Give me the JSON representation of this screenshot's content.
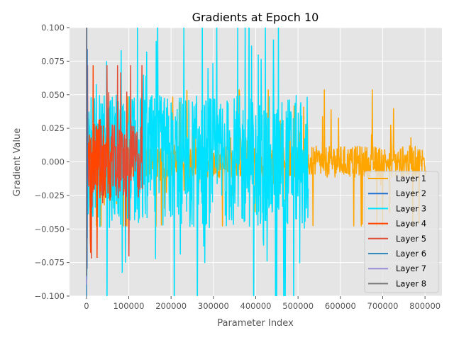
{
  "chart_data": {
    "type": "line",
    "title": "Gradients at Epoch 10",
    "xlabel": "Parameter Index",
    "ylabel": "Gradient Value",
    "xlim": [
      -40000,
      840000
    ],
    "ylim": [
      -0.1,
      0.1
    ],
    "x_ticks": [
      0,
      100000,
      200000,
      300000,
      400000,
      500000,
      600000,
      700000,
      800000
    ],
    "x_tick_labels": [
      "0",
      "100000",
      "200000",
      "300000",
      "400000",
      "500000",
      "600000",
      "700000",
      "800000"
    ],
    "y_ticks": [
      -0.1,
      -0.075,
      -0.05,
      -0.025,
      0.0,
      0.025,
      0.05,
      0.075,
      0.1
    ],
    "y_tick_labels": [
      "−0.100",
      "−0.075",
      "−0.050",
      "−0.025",
      "0.000",
      "0.025",
      "0.050",
      "0.075",
      "0.100"
    ],
    "grid": true,
    "legend_position": "lower-right",
    "series": [
      {
        "name": "Layer 1",
        "color": "#FFA500",
        "x_range": [
          0,
          802000
        ],
        "envelope": [
          -0.04,
          0.045
        ],
        "typical": 0.012
      },
      {
        "name": "Layer 2",
        "color": "#1F6FD0",
        "x_range": [
          0,
          2000
        ],
        "envelope": [
          -0.1,
          0.1
        ],
        "typical": 0.08
      },
      {
        "name": "Layer 3",
        "color": "#00E0FF",
        "x_range": [
          0,
          524000
        ],
        "envelope": [
          -0.1,
          0.1
        ],
        "typical": 0.05
      },
      {
        "name": "Layer 4",
        "color": "#FF4500",
        "x_range": [
          0,
          60000
        ],
        "envelope": [
          -0.06,
          0.06
        ],
        "typical": 0.03
      },
      {
        "name": "Layer 5",
        "color": "#E24A33",
        "x_range": [
          0,
          132000
        ],
        "envelope": [
          -0.06,
          0.06
        ],
        "typical": 0.028
      },
      {
        "name": "Layer 6",
        "color": "#348ABD",
        "x_range": [
          0,
          1000
        ],
        "envelope": [
          -0.1,
          0.1
        ],
        "typical": 0.08
      },
      {
        "name": "Layer 7",
        "color": "#988ED5",
        "x_range": [
          0,
          500
        ],
        "envelope": [
          -0.1,
          0.1
        ],
        "typical": 0.09
      },
      {
        "name": "Layer 8",
        "color": "#777777",
        "x_range": [
          0,
          300
        ],
        "envelope": [
          -0.1,
          0.1
        ],
        "typical": 0.09
      }
    ]
  }
}
